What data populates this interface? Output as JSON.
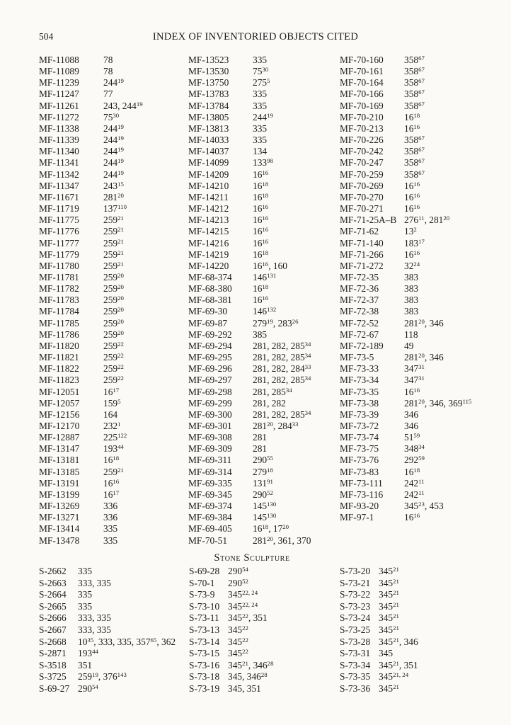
{
  "page": {
    "number": "504",
    "title": "INDEX OF INVENTORIED OBJECTS CITED"
  },
  "sections": [
    {
      "heading": "",
      "columns": [
        [
          [
            "MF-11088",
            "78"
          ],
          [
            "MF-11089",
            "78"
          ],
          [
            "MF-11239",
            "244^{19}"
          ],
          [
            "MF-11247",
            "77"
          ],
          [
            "MF-11261",
            "243, 244^{19}"
          ],
          [
            "MF-11272",
            "75^{30}"
          ],
          [
            "MF-11338",
            "244^{19}"
          ],
          [
            "MF-11339",
            "244^{19}"
          ],
          [
            "MF-11340",
            "244^{19}"
          ],
          [
            "MF-11341",
            "244^{19}"
          ],
          [
            "MF-11342",
            "244^{19}"
          ],
          [
            "MF-11347",
            "243^{15}"
          ],
          [
            "MF-11671",
            "281^{20}"
          ],
          [
            "MF-11719",
            "137^{110}"
          ],
          [
            "MF-11775",
            "259^{21}"
          ],
          [
            "MF-11776",
            "259^{21}"
          ],
          [
            "MF-11777",
            "259^{21}"
          ],
          [
            "MF-11779",
            "259^{21}"
          ],
          [
            "MF-11780",
            "259^{21}"
          ],
          [
            "MF-11781",
            "259^{20}"
          ],
          [
            "MF-11782",
            "259^{20}"
          ],
          [
            "MF-11783",
            "259^{20}"
          ],
          [
            "MF-11784",
            "259^{20}"
          ],
          [
            "MF-11785",
            "259^{20}"
          ],
          [
            "MF-11786",
            "259^{20}"
          ],
          [
            "MF-11820",
            "259^{22}"
          ],
          [
            "MF-11821",
            "259^{22}"
          ],
          [
            "MF-11822",
            "259^{22}"
          ],
          [
            "MF-11823",
            "259^{22}"
          ],
          [
            "MF-12051",
            "16^{17}"
          ],
          [
            "MF-12057",
            "159^{5}"
          ],
          [
            "MF-12156",
            "164"
          ],
          [
            "MF-12170",
            "232^{1}"
          ],
          [
            "MF-12887",
            "225^{122}"
          ],
          [
            "MF-13147",
            "193^{44}"
          ],
          [
            "MF-13181",
            "16^{18}"
          ],
          [
            "MF-13185",
            "259^{21}"
          ],
          [
            "MF-13191",
            "16^{16}"
          ],
          [
            "MF-13199",
            "16^{17}"
          ],
          [
            "MF-13269",
            "336"
          ],
          [
            "MF-13271",
            "336"
          ],
          [
            "MF-13414",
            "335"
          ],
          [
            "MF-13478",
            "335"
          ]
        ],
        [
          [
            "MF-13523",
            "335"
          ],
          [
            "MF-13530",
            "75^{30}"
          ],
          [
            "MF-13750",
            "275^{5}"
          ],
          [
            "MF-13783",
            "335"
          ],
          [
            "MF-13784",
            "335"
          ],
          [
            "MF-13805",
            "244^{19}"
          ],
          [
            "MF-13813",
            "335"
          ],
          [
            "MF-14033",
            "335"
          ],
          [
            "MF-14037",
            "134"
          ],
          [
            "MF-14099",
            "133^{98}"
          ],
          [
            "MF-14209",
            "16^{16}"
          ],
          [
            "MF-14210",
            "16^{18}"
          ],
          [
            "MF-14211",
            "16^{18}"
          ],
          [
            "MF-14212",
            "16^{16}"
          ],
          [
            "MF-14213",
            "16^{16}"
          ],
          [
            "MF-14215",
            "16^{16}"
          ],
          [
            "MF-14216",
            "16^{16}"
          ],
          [
            "MF-14219",
            "16^{18}"
          ],
          [
            "MF-14220",
            "16^{16}, 160"
          ],
          [
            "MF-68-374",
            "146^{131}"
          ],
          [
            "MF-68-380",
            "16^{18}"
          ],
          [
            "MF-68-381",
            "16^{16}"
          ],
          [
            "MF-69-30",
            "146^{132}"
          ],
          [
            "MF-69-87",
            "279^{19}, 283^{26}"
          ],
          [
            "MF-69-292",
            "385"
          ],
          [
            "MF-69-294",
            "281, 282, 285^{34}"
          ],
          [
            "MF-69-295",
            "281, 282, 285^{34}"
          ],
          [
            "MF-69-296",
            "281, 282, 284^{33}"
          ],
          [
            "MF-69-297",
            "281, 282, 285^{34}"
          ],
          [
            "MF-69-298",
            "281, 285^{34}"
          ],
          [
            "MF-69-299",
            "281, 282"
          ],
          [
            "MF-69-300",
            "281, 282, 285^{34}"
          ],
          [
            "MF-69-301",
            "281^{20}, 284^{33}"
          ],
          [
            "MF-69-308",
            "281"
          ],
          [
            "MF-69-309",
            "281"
          ],
          [
            "MF-69-311",
            "290^{55}"
          ],
          [
            "MF-69-314",
            "279^{18}"
          ],
          [
            "MF-69-335",
            "131^{91}"
          ],
          [
            "MF-69-345",
            "290^{52}"
          ],
          [
            "MF-69-374",
            "145^{130}"
          ],
          [
            "MF-69-384",
            "145^{130}"
          ],
          [
            "MF-69-405",
            "16^{18}, 17^{20}"
          ],
          [
            "MF-70-51",
            "281^{20}, 361, 370"
          ]
        ],
        [
          [
            "MF-70-160",
            "358^{67}"
          ],
          [
            "MF-70-161",
            "358^{67}"
          ],
          [
            "MF-70-164",
            "358^{67}"
          ],
          [
            "MF-70-166",
            "358^{67}"
          ],
          [
            "MF-70-169",
            "358^{67}"
          ],
          [
            "MF-70-210",
            "16^{18}"
          ],
          [
            "MF-70-213",
            "16^{16}"
          ],
          [
            "MF-70-226",
            "358^{67}"
          ],
          [
            "MF-70-242",
            "358^{67}"
          ],
          [
            "MF-70-247",
            "358^{67}"
          ],
          [
            "MF-70-259",
            "358^{67}"
          ],
          [
            "MF-70-269",
            "16^{16}"
          ],
          [
            "MF-70-270",
            "16^{16}"
          ],
          [
            "MF-70-271",
            "16^{16}"
          ],
          [
            "MF-71-25A–B",
            "276^{11}, 281^{20}"
          ],
          [
            "MF-71-62",
            "13^{2}"
          ],
          [
            "MF-71-140",
            "183^{17}"
          ],
          [
            "MF-71-266",
            "16^{16}"
          ],
          [
            "MF-71-272",
            "32^{24}"
          ],
          [
            "MF-72-35",
            "383"
          ],
          [
            "MF-72-36",
            "383"
          ],
          [
            "MF-72-37",
            "383"
          ],
          [
            "MF-72-38",
            "383"
          ],
          [
            "MF-72-52",
            "281^{20}, 346"
          ],
          [
            "MF-72-67",
            "118"
          ],
          [
            "MF-72-189",
            "49"
          ],
          [
            "MF-73-5",
            "281^{20}, 346"
          ],
          [
            "MF-73-33",
            "347^{31}"
          ],
          [
            "MF-73-34",
            "347^{31}"
          ],
          [
            "MF-73-35",
            "16^{16}"
          ],
          [
            "MF-73-38",
            "281^{20}, 346, 369^{115}"
          ],
          [
            "MF-73-39",
            "346"
          ],
          [
            "MF-73-72",
            "346"
          ],
          [
            "MF-73-74",
            "51^{59}"
          ],
          [
            "MF-73-75",
            "348^{34}"
          ],
          [
            "MF-73-76",
            "292^{59}"
          ],
          [
            "MF-73-83",
            "16^{18}"
          ],
          [
            "MF-73-111",
            "242^{11}"
          ],
          [
            "MF-73-116",
            "242^{11}"
          ],
          [
            "MF-93-20",
            "345^{23}, 453"
          ],
          [
            "MF-97-1",
            "16^{16}"
          ]
        ]
      ]
    },
    {
      "heading": "Stone Sculpture",
      "columns": [
        [
          [
            "S-2662",
            "335"
          ],
          [
            "S-2663",
            "333, 335"
          ],
          [
            "S-2664",
            "335"
          ],
          [
            "S-2665",
            "335"
          ],
          [
            "S-2666",
            "333, 335"
          ],
          [
            "S-2667",
            "333, 335"
          ],
          [
            "S-2668",
            "10^{35}, 333, 335, 357^{65}, 362"
          ],
          [
            "S-2871",
            "193^{44}"
          ],
          [
            "S-3518",
            "351"
          ],
          [
            "S-3725",
            "259^{19}, 376^{143}"
          ],
          [
            "S-69-27",
            "290^{54}"
          ]
        ],
        [
          [
            "S-69-28",
            "290^{54}"
          ],
          [
            "S-70-1",
            "290^{52}"
          ],
          [
            "S-73-9",
            "345^{22, 24}"
          ],
          [
            "S-73-10",
            "345^{22, 24}"
          ],
          [
            "S-73-11",
            "345^{22}, 351"
          ],
          [
            "S-73-13",
            "345^{22}"
          ],
          [
            "S-73-14",
            "345^{22}"
          ],
          [
            "S-73-15",
            "345^{22}"
          ],
          [
            "S-73-16",
            "345^{21}, 346^{28}"
          ],
          [
            "S-73-18",
            "345, 346^{28}"
          ],
          [
            "S-73-19",
            "345, 351"
          ]
        ],
        [
          [
            "S-73-20",
            "345^{21}"
          ],
          [
            "S-73-21",
            "345^{21}"
          ],
          [
            "S-73-22",
            "345^{21}"
          ],
          [
            "S-73-23",
            "345^{21}"
          ],
          [
            "S-73-24",
            "345^{21}"
          ],
          [
            "S-73-25",
            "345^{21}"
          ],
          [
            "S-73-28",
            "345^{21}, 346"
          ],
          [
            "S-73-31",
            "345"
          ],
          [
            "S-73-34",
            "345^{21}, 351"
          ],
          [
            "S-73-35",
            "345^{21, 24}"
          ],
          [
            "S-73-36",
            "345^{21}"
          ]
        ]
      ]
    }
  ]
}
